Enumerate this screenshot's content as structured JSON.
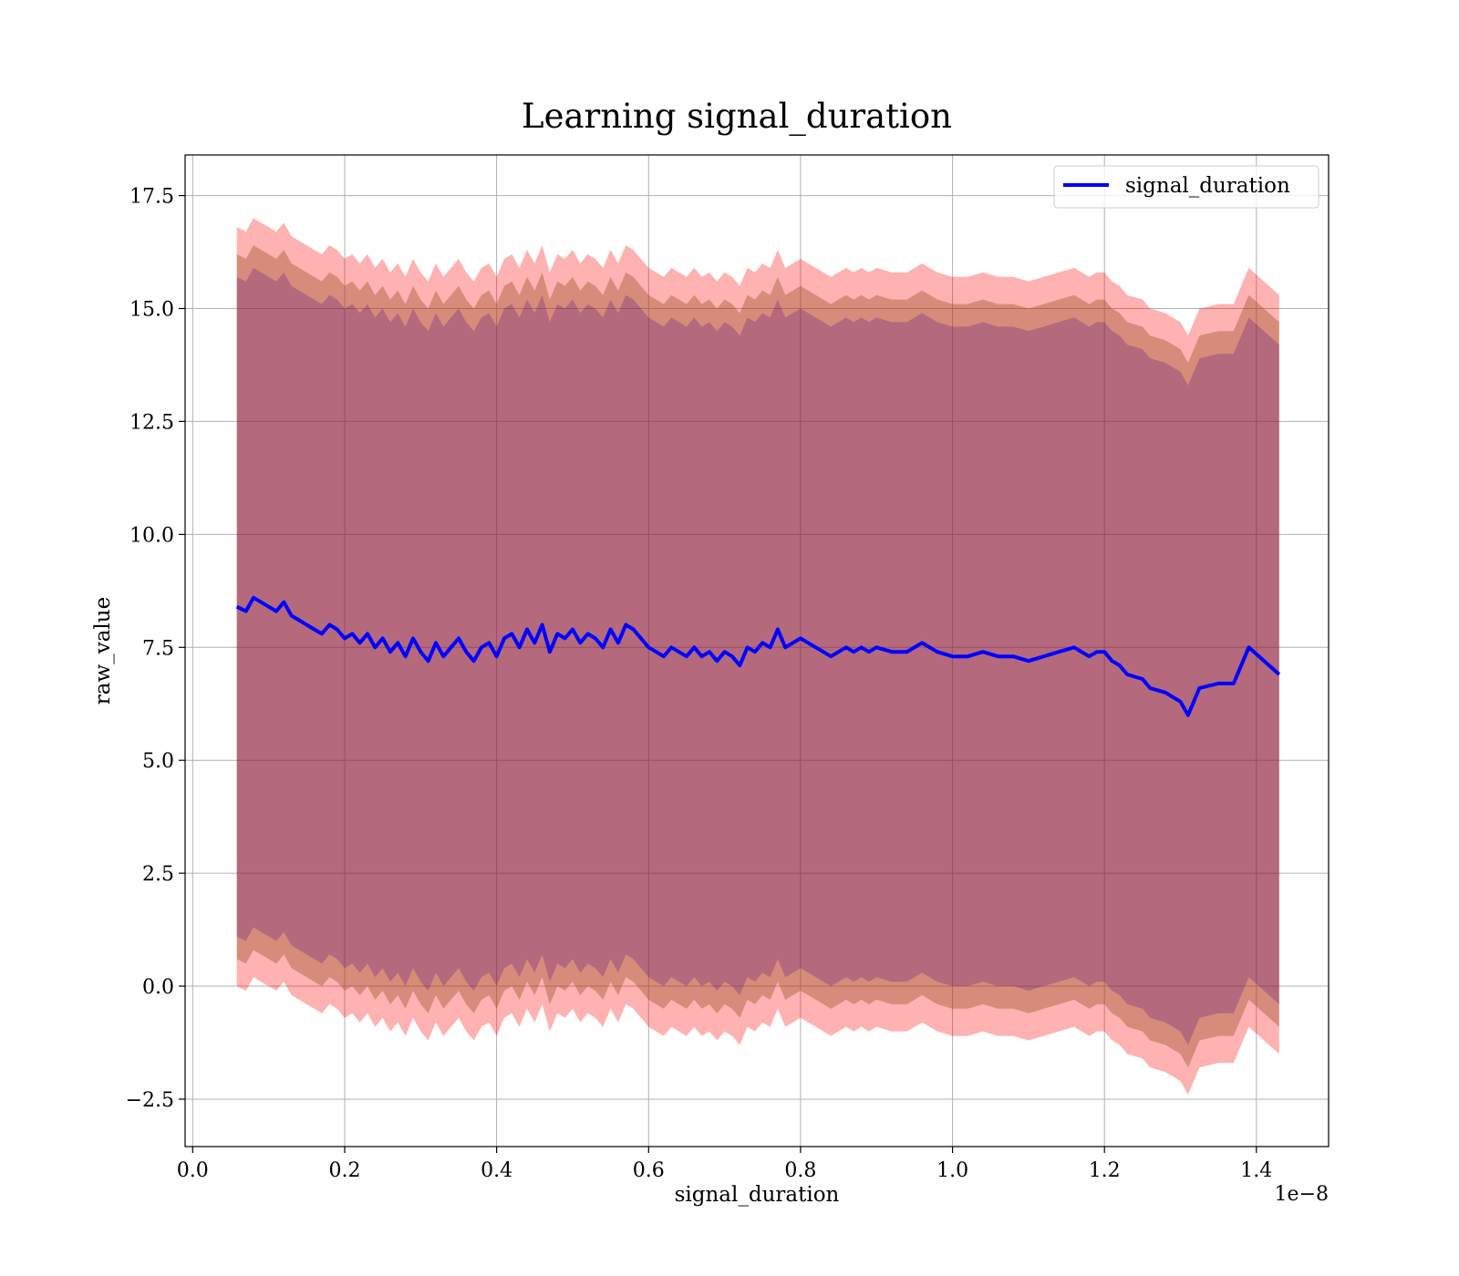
{
  "chart_data": {
    "type": "line",
    "title": "Learning signal_duration",
    "xlabel": "signal_duration",
    "ylabel": "raw_value",
    "x_offset_label": "1e−8",
    "xlim": [
      -0.01,
      1.495
    ],
    "ylim": [
      -3.55,
      18.4
    ],
    "x_ticks": [
      0.0,
      0.2,
      0.4,
      0.6,
      0.8,
      1.0,
      1.2,
      1.4
    ],
    "x_tick_labels": [
      "0.0",
      "0.2",
      "0.4",
      "0.6",
      "0.8",
      "1.0",
      "1.2",
      "1.4"
    ],
    "y_ticks": [
      -2.5,
      0.0,
      2.5,
      5.0,
      7.5,
      10.0,
      12.5,
      15.0,
      17.5
    ],
    "y_tick_labels": [
      "−2.5",
      "0.0",
      "2.5",
      "5.0",
      "7.5",
      "10.0",
      "12.5",
      "15.0",
      "17.5"
    ],
    "grid": true,
    "legend_position": "top-right",
    "series": [
      {
        "name": "signal_duration",
        "color": "#0000ff",
        "x": [
          0.058,
          0.07,
          0.08,
          0.09,
          0.1,
          0.11,
          0.12,
          0.13,
          0.14,
          0.15,
          0.16,
          0.17,
          0.18,
          0.19,
          0.2,
          0.21,
          0.22,
          0.23,
          0.24,
          0.25,
          0.26,
          0.27,
          0.28,
          0.29,
          0.3,
          0.31,
          0.32,
          0.33,
          0.34,
          0.35,
          0.36,
          0.37,
          0.38,
          0.39,
          0.4,
          0.41,
          0.42,
          0.43,
          0.44,
          0.45,
          0.46,
          0.47,
          0.48,
          0.49,
          0.5,
          0.51,
          0.52,
          0.53,
          0.54,
          0.55,
          0.56,
          0.57,
          0.58,
          0.59,
          0.6,
          0.61,
          0.62,
          0.63,
          0.64,
          0.65,
          0.66,
          0.67,
          0.68,
          0.69,
          0.7,
          0.71,
          0.72,
          0.73,
          0.74,
          0.75,
          0.76,
          0.77,
          0.78,
          0.79,
          0.8,
          0.81,
          0.82,
          0.83,
          0.84,
          0.85,
          0.86,
          0.87,
          0.88,
          0.89,
          0.9,
          0.92,
          0.94,
          0.96,
          0.98,
          1.0,
          1.02,
          1.04,
          1.06,
          1.08,
          1.1,
          1.12,
          1.14,
          1.16,
          1.18,
          1.19,
          1.2,
          1.21,
          1.22,
          1.23,
          1.25,
          1.26,
          1.28,
          1.3,
          1.31,
          1.325,
          1.35,
          1.37,
          1.39,
          1.43
        ],
        "y": [
          8.4,
          8.3,
          8.6,
          8.5,
          8.4,
          8.3,
          8.5,
          8.2,
          8.1,
          8.0,
          7.9,
          7.8,
          8.0,
          7.9,
          7.7,
          7.8,
          7.6,
          7.8,
          7.5,
          7.7,
          7.4,
          7.6,
          7.3,
          7.7,
          7.4,
          7.2,
          7.6,
          7.3,
          7.5,
          7.7,
          7.4,
          7.2,
          7.5,
          7.6,
          7.3,
          7.7,
          7.8,
          7.5,
          7.9,
          7.6,
          8.0,
          7.4,
          7.8,
          7.7,
          7.9,
          7.6,
          7.8,
          7.7,
          7.5,
          7.9,
          7.6,
          8.0,
          7.9,
          7.7,
          7.5,
          7.4,
          7.3,
          7.5,
          7.4,
          7.3,
          7.5,
          7.3,
          7.4,
          7.2,
          7.4,
          7.3,
          7.1,
          7.5,
          7.4,
          7.6,
          7.5,
          7.9,
          7.5,
          7.6,
          7.7,
          7.6,
          7.5,
          7.4,
          7.3,
          7.4,
          7.5,
          7.4,
          7.5,
          7.4,
          7.5,
          7.4,
          7.4,
          7.6,
          7.4,
          7.3,
          7.3,
          7.4,
          7.3,
          7.3,
          7.2,
          7.3,
          7.4,
          7.5,
          7.3,
          7.4,
          7.4,
          7.2,
          7.1,
          6.9,
          6.8,
          6.6,
          6.5,
          6.3,
          6.0,
          6.6,
          6.7,
          6.7,
          7.5,
          6.9
        ]
      }
    ],
    "bands": [
      {
        "color": "#ff0000",
        "opacity": 0.3,
        "sigma": 8.4
      },
      {
        "color": "#8b4513",
        "opacity": 0.35,
        "sigma": 7.8
      },
      {
        "color": "#4b0082",
        "opacity": 0.25,
        "sigma": 7.3
      }
    ]
  }
}
